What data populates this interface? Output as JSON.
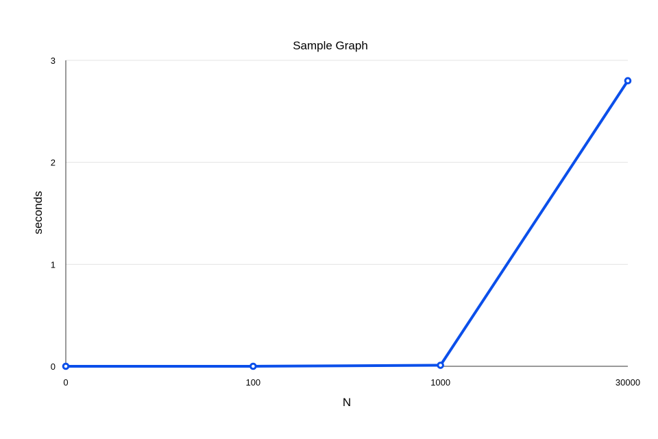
{
  "chart_data": {
    "type": "line",
    "title": "Sample Graph",
    "xlabel": "N",
    "ylabel": "seconds",
    "categories": [
      "0",
      "100",
      "1000",
      "30000"
    ],
    "series": [
      {
        "values": [
          0,
          0,
          0.01,
          2.8
        ]
      }
    ],
    "ylim": [
      0,
      3
    ],
    "yticks": [
      "0",
      "1",
      "2",
      "3"
    ],
    "grid": true,
    "legend": "none",
    "colors": {
      "series": "#0b4fea",
      "grid": "#e3e3e3",
      "axis": "#333333"
    }
  }
}
